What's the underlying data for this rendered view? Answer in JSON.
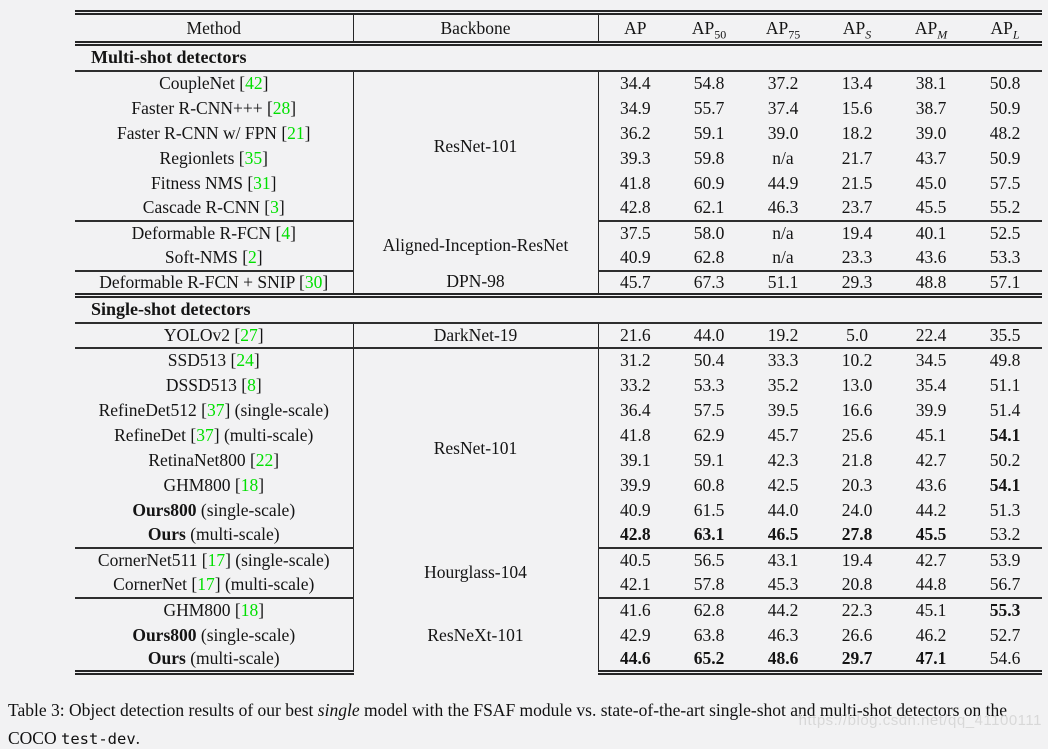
{
  "colors": {
    "page_background": "#f2f2f3",
    "citation_green": "#00e000",
    "rule_color": "#262626",
    "watermark_gray": "#d8d8d8"
  },
  "table": {
    "header": {
      "method": "Method",
      "backbone": "Backbone",
      "metrics": [
        {
          "base": "AP",
          "sub": "",
          "italic": false
        },
        {
          "base": "AP",
          "sub": "50",
          "italic": false
        },
        {
          "base": "AP",
          "sub": "75",
          "italic": false
        },
        {
          "base": "AP",
          "sub": "S",
          "italic": true
        },
        {
          "base": "AP",
          "sub": "M",
          "italic": true
        },
        {
          "base": "AP",
          "sub": "L",
          "italic": true
        }
      ]
    },
    "sections": [
      {
        "title": "Multi-shot detectors",
        "groups": [
          {
            "backbone": "ResNet-101",
            "end_rule": "single",
            "rows": [
              {
                "name": "CoupleNet",
                "bold_name": false,
                "cite": "42",
                "suffix": "",
                "values": [
                  "34.4",
                  "54.8",
                  "37.2",
                  "13.4",
                  "38.1",
                  "50.8"
                ],
                "bold_cols": []
              },
              {
                "name": "Faster R-CNN+++",
                "bold_name": false,
                "cite": "28",
                "suffix": "",
                "values": [
                  "34.9",
                  "55.7",
                  "37.4",
                  "15.6",
                  "38.7",
                  "50.9"
                ],
                "bold_cols": []
              },
              {
                "name": "Faster R-CNN w/ FPN",
                "bold_name": false,
                "cite": "21",
                "suffix": "",
                "values": [
                  "36.2",
                  "59.1",
                  "39.0",
                  "18.2",
                  "39.0",
                  "48.2"
                ],
                "bold_cols": []
              },
              {
                "name": "Regionlets",
                "bold_name": false,
                "cite": "35",
                "suffix": "",
                "values": [
                  "39.3",
                  "59.8",
                  "n/a",
                  "21.7",
                  "43.7",
                  "50.9"
                ],
                "bold_cols": []
              },
              {
                "name": "Fitness NMS",
                "bold_name": false,
                "cite": "31",
                "suffix": "",
                "values": [
                  "41.8",
                  "60.9",
                  "44.9",
                  "21.5",
                  "45.0",
                  "57.5"
                ],
                "bold_cols": []
              },
              {
                "name": "Cascade R-CNN",
                "bold_name": false,
                "cite": "3",
                "suffix": "",
                "values": [
                  "42.8",
                  "62.1",
                  "46.3",
                  "23.7",
                  "45.5",
                  "55.2"
                ],
                "bold_cols": []
              }
            ]
          },
          {
            "backbone": "Aligned-Inception-ResNet",
            "end_rule": "single",
            "rows": [
              {
                "name": "Deformable R-FCN",
                "bold_name": false,
                "cite": "4",
                "suffix": "",
                "values": [
                  "37.5",
                  "58.0",
                  "n/a",
                  "19.4",
                  "40.1",
                  "52.5"
                ],
                "bold_cols": []
              },
              {
                "name": "Soft-NMS",
                "bold_name": false,
                "cite": "2",
                "suffix": "",
                "values": [
                  "40.9",
                  "62.8",
                  "n/a",
                  "23.3",
                  "43.6",
                  "53.3"
                ],
                "bold_cols": []
              }
            ]
          },
          {
            "backbone": "DPN-98",
            "end_rule": "double",
            "rows": [
              {
                "name": "Deformable R-FCN + SNIP",
                "bold_name": false,
                "cite": "30",
                "suffix": "",
                "values": [
                  "45.7",
                  "67.3",
                  "51.1",
                  "29.3",
                  "48.8",
                  "57.1"
                ],
                "bold_cols": []
              }
            ]
          }
        ]
      },
      {
        "title": "Single-shot detectors",
        "groups": [
          {
            "backbone": "DarkNet-19",
            "end_rule": "single",
            "rows": [
              {
                "name": "YOLOv2",
                "bold_name": false,
                "cite": "27",
                "suffix": "",
                "values": [
                  "21.6",
                  "44.0",
                  "19.2",
                  "5.0",
                  "22.4",
                  "35.5"
                ],
                "bold_cols": []
              }
            ]
          },
          {
            "backbone": "ResNet-101",
            "end_rule": "single",
            "rows": [
              {
                "name": "SSD513",
                "bold_name": false,
                "cite": "24",
                "suffix": "",
                "values": [
                  "31.2",
                  "50.4",
                  "33.3",
                  "10.2",
                  "34.5",
                  "49.8"
                ],
                "bold_cols": []
              },
              {
                "name": "DSSD513",
                "bold_name": false,
                "cite": "8",
                "suffix": "",
                "values": [
                  "33.2",
                  "53.3",
                  "35.2",
                  "13.0",
                  "35.4",
                  "51.1"
                ],
                "bold_cols": []
              },
              {
                "name": "RefineDet512",
                "bold_name": false,
                "cite": "37",
                "suffix": " (single-scale)",
                "values": [
                  "36.4",
                  "57.5",
                  "39.5",
                  "16.6",
                  "39.9",
                  "51.4"
                ],
                "bold_cols": []
              },
              {
                "name": "RefineDet",
                "bold_name": false,
                "cite": "37",
                "suffix": " (multi-scale)",
                "values": [
                  "41.8",
                  "62.9",
                  "45.7",
                  "25.6",
                  "45.1",
                  "54.1"
                ],
                "bold_cols": [
                  5
                ]
              },
              {
                "name": "RetinaNet800",
                "bold_name": false,
                "cite": "22",
                "suffix": "",
                "values": [
                  "39.1",
                  "59.1",
                  "42.3",
                  "21.8",
                  "42.7",
                  "50.2"
                ],
                "bold_cols": []
              },
              {
                "name": "GHM800",
                "bold_name": false,
                "cite": "18",
                "suffix": "",
                "values": [
                  "39.9",
                  "60.8",
                  "42.5",
                  "20.3",
                  "43.6",
                  "54.1"
                ],
                "bold_cols": [
                  5
                ]
              },
              {
                "name": "Ours800",
                "bold_name": true,
                "cite": "",
                "suffix": " (single-scale)",
                "values": [
                  "40.9",
                  "61.5",
                  "44.0",
                  "24.0",
                  "44.2",
                  "51.3"
                ],
                "bold_cols": []
              },
              {
                "name": "Ours",
                "bold_name": true,
                "cite": "",
                "suffix": " (multi-scale)",
                "values": [
                  "42.8",
                  "63.1",
                  "46.5",
                  "27.8",
                  "45.5",
                  "53.2"
                ],
                "bold_cols": [
                  0,
                  1,
                  2,
                  3,
                  4
                ]
              }
            ]
          },
          {
            "backbone": "Hourglass-104",
            "end_rule": "single",
            "rows": [
              {
                "name": "CornerNet511",
                "bold_name": false,
                "cite": "17",
                "suffix": " (single-scale)",
                "values": [
                  "40.5",
                  "56.5",
                  "43.1",
                  "19.4",
                  "42.7",
                  "53.9"
                ],
                "bold_cols": []
              },
              {
                "name": "CornerNet",
                "bold_name": false,
                "cite": "17",
                "suffix": " (multi-scale)",
                "values": [
                  "42.1",
                  "57.8",
                  "45.3",
                  "20.8",
                  "44.8",
                  "56.7"
                ],
                "bold_cols": []
              }
            ]
          },
          {
            "backbone": "ResNeXt-101",
            "end_rule": "double",
            "rows": [
              {
                "name": "GHM800",
                "bold_name": false,
                "cite": "18",
                "suffix": "",
                "values": [
                  "41.6",
                  "62.8",
                  "44.2",
                  "22.3",
                  "45.1",
                  "55.3"
                ],
                "bold_cols": [
                  5
                ]
              },
              {
                "name": "Ours800",
                "bold_name": true,
                "cite": "",
                "suffix": " (single-scale)",
                "values": [
                  "42.9",
                  "63.8",
                  "46.3",
                  "26.6",
                  "46.2",
                  "52.7"
                ],
                "bold_cols": []
              },
              {
                "name": "Ours",
                "bold_name": true,
                "cite": "",
                "suffix": " (multi-scale)",
                "values": [
                  "44.6",
                  "65.2",
                  "48.6",
                  "29.7",
                  "47.1",
                  "54.6"
                ],
                "bold_cols": [
                  0,
                  1,
                  2,
                  3,
                  4
                ]
              }
            ]
          }
        ]
      }
    ]
  },
  "caption": {
    "prefix": "Table 3: Object detection results of our best ",
    "italic_word": "single",
    "middle": " model with the FSAF module vs. state-of-the-art single-shot and multi-shot detectors on the COCO ",
    "code_word": "test-dev",
    "end": "."
  },
  "watermark": "https://blog.csdn.net/qq_41100111"
}
